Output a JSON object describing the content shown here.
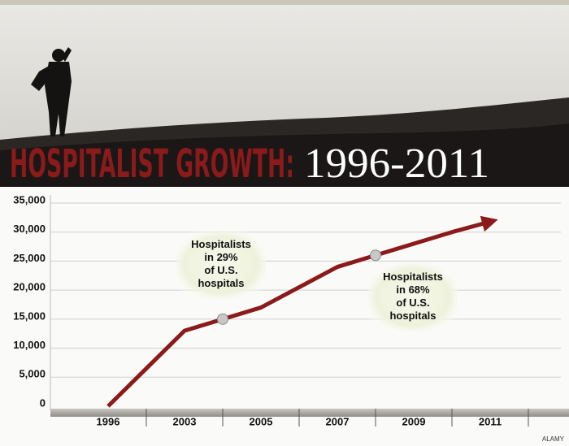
{
  "chart_data": {
    "type": "line",
    "title": "HOSPITALIST GROWTH:",
    "subtitle": "1996-2011",
    "credit": "ALAMY",
    "categories": [
      "1996",
      null,
      "2003",
      null,
      "2005",
      null,
      "2007",
      null,
      "2009",
      null,
      "2011"
    ],
    "series": [
      {
        "color": "#8b1a1a",
        "values": [
          0,
          6500,
          13000,
          15000,
          17000,
          20500,
          24000,
          26000,
          28000,
          30000,
          31800
        ]
      }
    ],
    "markers": [
      3,
      7
    ],
    "annotations": [
      {
        "lines": [
          "Hospitalists",
          "in 29%",
          "of U.S.",
          "hospitals"
        ]
      },
      {
        "lines": [
          "Hospitalists",
          "in 68%",
          "of U.S.",
          "hospitals"
        ]
      }
    ],
    "ylim": [
      0,
      35000
    ],
    "yticks": [
      0,
      {
        "value": 5000,
        "label": "5,000"
      },
      {
        "value": 10000,
        "label": "10,000"
      },
      {
        "value": 15000,
        "label": "15,000"
      },
      {
        "value": 20000,
        "label": "20,000"
      },
      {
        "value": 25000,
        "label": "25,000"
      },
      {
        "value": 30000,
        "label": "30,000"
      },
      {
        "value": 35000,
        "label": "35,000"
      }
    ],
    "grid": true
  }
}
